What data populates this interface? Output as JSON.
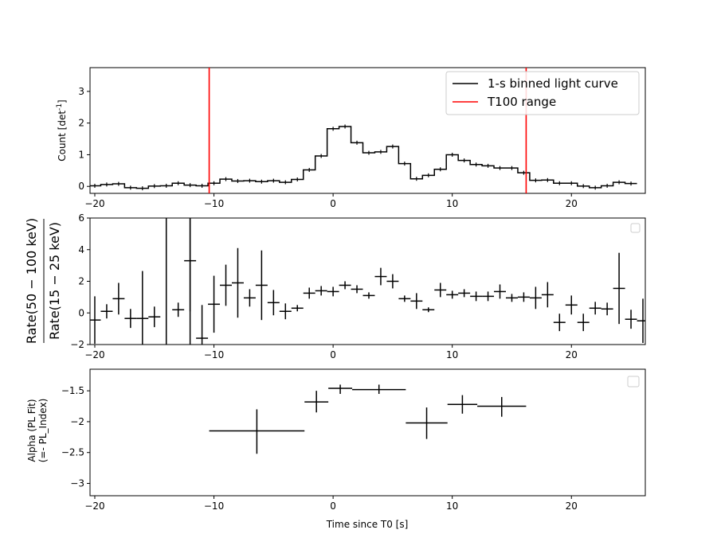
{
  "chart_data": [
    {
      "type": "line",
      "panel": "light-curve",
      "ylabel": "Count [det",
      "ylabel_sup": "-1",
      "ylabel_end": "]",
      "xlim": [
        -20.4,
        26.2
      ],
      "ylim": [
        -0.22,
        3.75
      ],
      "xticks": [
        -20,
        -10,
        0,
        10,
        20
      ],
      "yticks": [
        0,
        1,
        2,
        3
      ],
      "legend_position": "top-right",
      "legend": [
        "1-s binned light curve",
        "T100 range"
      ],
      "series": [
        {
          "name": "1-s binned light curve",
          "color": "#000000",
          "step": true,
          "bin_width": 1,
          "x": [
            -20,
            -19,
            -18,
            -17,
            -16,
            -15,
            -14,
            -13,
            -12,
            -11,
            -10,
            -9,
            -8,
            -7,
            -6,
            -5,
            -4,
            -3,
            -2,
            -1,
            0,
            1,
            2,
            3,
            4,
            5,
            6,
            7,
            8,
            9,
            10,
            11,
            12,
            13,
            14,
            15,
            16,
            17,
            18,
            19,
            20,
            21,
            22,
            23,
            24,
            25
          ],
          "y": [
            0.02,
            0.06,
            0.08,
            -0.04,
            -0.06,
            0.01,
            0.02,
            0.1,
            0.04,
            0.02,
            0.1,
            0.23,
            0.17,
            0.18,
            0.15,
            0.18,
            0.13,
            0.22,
            0.52,
            0.96,
            1.82,
            1.89,
            1.38,
            1.06,
            1.09,
            1.26,
            0.72,
            0.24,
            0.35,
            0.54,
            1.0,
            0.82,
            0.69,
            0.65,
            0.58,
            0.58,
            0.43,
            0.19,
            0.2,
            0.1,
            0.1,
            0.01,
            -0.04,
            0.02,
            0.13,
            0.09
          ]
        },
        {
          "name": "T100 range",
          "color": "#ff0000",
          "vlines": [
            -10.4,
            16.2
          ]
        }
      ]
    },
    {
      "type": "scatter",
      "panel": "hardness-ratio",
      "ylabel_num": "Rate(50 − 100 keV)",
      "ylabel_den": "Rate(15 − 25 keV)",
      "xlim": [
        -20.4,
        26.2
      ],
      "ylim": [
        -2,
        6
      ],
      "xticks": [
        -20,
        -10,
        0,
        10,
        20
      ],
      "yticks": [
        -2,
        0,
        2,
        4,
        6
      ],
      "legend_position": "top-right",
      "series": [
        {
          "name": "",
          "color": "#000000",
          "x": [
            -20,
            -19,
            -18,
            -17,
            -16,
            -15,
            -13,
            -12,
            -11,
            -10,
            -9,
            -8,
            -7,
            -6,
            -5,
            -4,
            -3,
            -2,
            -1,
            0,
            1,
            2,
            3,
            4,
            5,
            6,
            7,
            8,
            9,
            10,
            11,
            12,
            13,
            14,
            15,
            16,
            17,
            18,
            19,
            20,
            21,
            22,
            23,
            24,
            25,
            26
          ],
          "y": [
            -0.45,
            0.1,
            0.9,
            -0.35,
            -0.35,
            -0.25,
            0.2,
            3.3,
            -1.6,
            0.55,
            1.75,
            1.9,
            0.95,
            1.75,
            0.65,
            0.1,
            0.3,
            1.25,
            1.4,
            1.35,
            1.75,
            1.5,
            1.1,
            2.3,
            2.0,
            0.9,
            0.75,
            0.2,
            1.45,
            1.15,
            1.25,
            1.05,
            1.05,
            1.35,
            0.95,
            1.0,
            0.95,
            1.15,
            -0.6,
            0.5,
            -0.6,
            0.3,
            0.25,
            1.55,
            -0.4,
            -0.5
          ],
          "yerr": [
            1.5,
            0.45,
            1.0,
            0.6,
            3.0,
            0.65,
            0.45,
            3.2,
            2.1,
            1.8,
            1.3,
            2.2,
            0.55,
            2.2,
            0.8,
            0.5,
            0.2,
            0.35,
            0.3,
            0.3,
            0.25,
            0.25,
            0.2,
            0.55,
            0.45,
            0.2,
            0.5,
            0.15,
            0.45,
            0.25,
            0.25,
            0.3,
            0.3,
            0.45,
            0.25,
            0.3,
            0.7,
            0.8,
            0.55,
            0.6,
            0.55,
            0.4,
            0.4,
            2.25,
            0.6,
            1.4
          ]
        }
      ],
      "clipped_bars": [
        {
          "x": -14,
          "y_low": -2,
          "y_high": 6
        },
        {
          "x": -12,
          "y_low": -2,
          "y_high": 6
        }
      ]
    },
    {
      "type": "scatter",
      "panel": "alpha",
      "ylabel_top": "Alpha (PL Fit)",
      "ylabel_bottom": "(=- PL_Index)",
      "xlabel": "Time since T0 [s]",
      "xlim": [
        -20.4,
        26.2
      ],
      "ylim": [
        -3.2,
        -1.15
      ],
      "xticks": [
        -20,
        -10,
        0,
        10,
        20
      ],
      "yticks": [
        -1.5,
        -2.0,
        -2.5,
        -3.0
      ],
      "legend_position": "top-right",
      "series": [
        {
          "name": "",
          "color": "#000000",
          "x_low": [
            -10.4,
            -2.4,
            -0.4,
            1.6,
            6.1,
            9.6,
            12.1
          ],
          "x_high": [
            -2.4,
            -0.4,
            1.6,
            6.1,
            9.6,
            12.1,
            16.2
          ],
          "y": [
            -2.15,
            -1.68,
            -1.46,
            -1.48,
            -2.02,
            -1.72,
            -1.75
          ],
          "y_low": [
            -2.52,
            -1.85,
            -1.55,
            -1.55,
            -2.28,
            -1.87,
            -1.92
          ],
          "y_high": [
            -1.8,
            -1.5,
            -1.4,
            -1.4,
            -1.77,
            -1.57,
            -1.6
          ]
        }
      ]
    }
  ]
}
